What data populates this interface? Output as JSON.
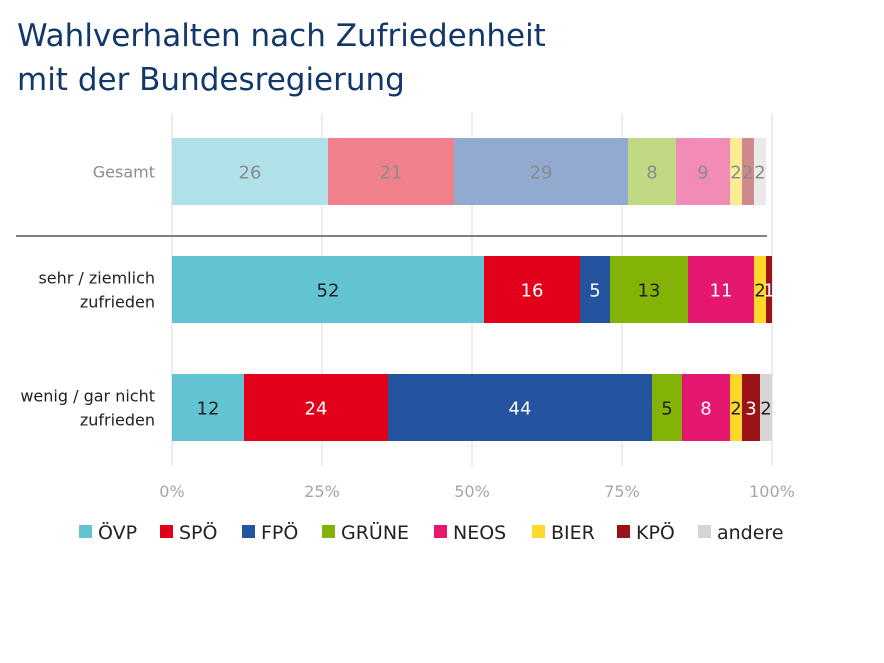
{
  "title_lines": [
    "Wahlverhalten nach Zufriedenheit",
    "mit der Bundesregierung"
  ],
  "chart_data": {
    "type": "bar",
    "orientation": "horizontal",
    "stacked": true,
    "categories": [
      "Gesamt",
      "sehr / ziemlich zufrieden",
      "wenig / gar nicht zufrieden"
    ],
    "category_label_lines": [
      [
        "Gesamt"
      ],
      [
        "sehr / ziemlich",
        "zufrieden"
      ],
      [
        "wenig / gar nicht",
        "zufrieden"
      ]
    ],
    "series": [
      {
        "name": "ÖVP",
        "values": [
          26,
          52,
          12
        ],
        "color": "#62c4d3",
        "faded_color": "#b0e1e9"
      },
      {
        "name": "SPÖ",
        "values": [
          21,
          16,
          24
        ],
        "color": "#e3001b",
        "faded_color": "#f1808d"
      },
      {
        "name": "FPÖ",
        "values": [
          29,
          5,
          44
        ],
        "color": "#2453a0",
        "faded_color": "#92a9d0"
      },
      {
        "name": "GRÜNE",
        "values": [
          8,
          13,
          5
        ],
        "color": "#83b307",
        "faded_color": "#c1d983"
      },
      {
        "name": "NEOS",
        "values": [
          9,
          11,
          8
        ],
        "color": "#e5176f",
        "faded_color": "#f28bb7"
      },
      {
        "name": "BIER",
        "values": [
          2,
          2,
          2
        ],
        "color": "#fed82a",
        "faded_color": "#fdec94"
      },
      {
        "name": "KPÖ",
        "values": [
          2,
          1,
          3
        ],
        "color": "#9c1317",
        "faded_color": "#cd898b"
      },
      {
        "name": "andere",
        "values": [
          2,
          0,
          2
        ],
        "color": "#d5d5d5",
        "faded_color": "#eaeaea"
      }
    ],
    "faded_categories": [
      "Gesamt"
    ],
    "x_ticks": [
      "0%",
      "25%",
      "50%",
      "75%",
      "100%"
    ],
    "xlim": [
      0,
      100
    ],
    "grid": true,
    "legend": "bottom"
  }
}
